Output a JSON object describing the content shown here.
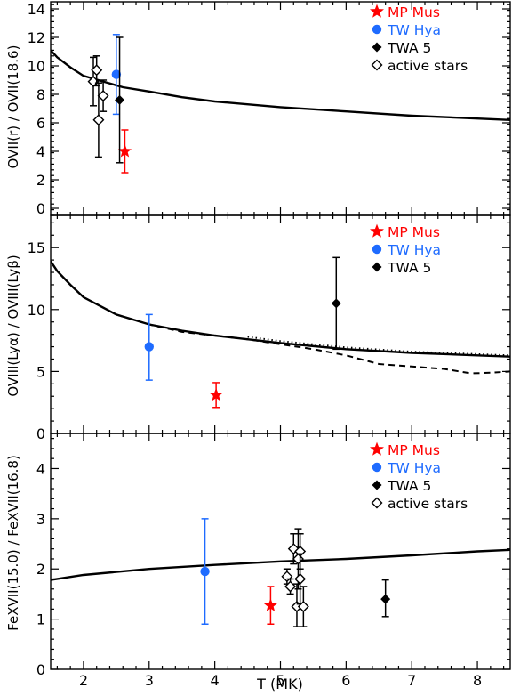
{
  "chart_data": [
    {
      "type": "scatter",
      "ylabel": "OVII(r) / OVII(18.6)",
      "xlim": [
        1.5,
        8.5
      ],
      "ylim": [
        -0.5,
        14.5
      ],
      "yticks": [
        0,
        2,
        4,
        6,
        8,
        10,
        12,
        14
      ],
      "legend_position": "top-right",
      "legend": [
        {
          "name": "MP Mus",
          "marker": "star",
          "color": "#ff0000"
        },
        {
          "name": "TW Hya",
          "marker": "circle",
          "color": "#1e6bff"
        },
        {
          "name": "TWA 5",
          "marker": "diamond-filled",
          "color": "#000000"
        },
        {
          "name": "active stars",
          "marker": "diamond-open",
          "color": "#000000"
        }
      ],
      "series": [
        {
          "name": "MP Mus",
          "marker": "star",
          "color": "#ff0000",
          "points": [
            {
              "x": 2.63,
              "y": 4.0,
              "lo": 2.5,
              "hi": 5.5
            }
          ]
        },
        {
          "name": "TW Hya",
          "marker": "circle",
          "color": "#1e6bff",
          "points": [
            {
              "x": 2.5,
              "y": 9.4,
              "lo": 6.6,
              "hi": 12.2
            }
          ]
        },
        {
          "name": "TWA 5",
          "marker": "diamond-filled",
          "color": "#000000",
          "points": [
            {
              "x": 2.55,
              "y": 7.6,
              "lo": 3.2,
              "hi": 12.0
            }
          ]
        },
        {
          "name": "active stars",
          "marker": "diamond-open",
          "color": "#000000",
          "points": [
            {
              "x": 2.15,
              "y": 8.9,
              "lo": 7.2,
              "hi": 10.6
            },
            {
              "x": 2.2,
              "y": 9.7,
              "lo": 8.6,
              "hi": 10.7
            },
            {
              "x": 2.3,
              "y": 7.9,
              "lo": 6.8,
              "hi": 9.0
            },
            {
              "x": 2.23,
              "y": 6.2,
              "lo": 3.6,
              "hi": 8.8
            }
          ]
        }
      ],
      "curves": [
        {
          "style": "solid",
          "x": [
            1.5,
            1.6,
            1.8,
            2.0,
            2.3,
            2.6,
            3.0,
            3.5,
            4.0,
            5.0,
            6.0,
            7.0,
            8.0,
            8.5
          ],
          "y": [
            11.1,
            10.6,
            9.9,
            9.3,
            8.9,
            8.5,
            8.2,
            7.8,
            7.5,
            7.1,
            6.8,
            6.5,
            6.3,
            6.2
          ]
        }
      ]
    },
    {
      "type": "scatter",
      "ylabel": "OVIII(Lyα) / OVIII(Lyβ)",
      "xlim": [
        1.5,
        8.5
      ],
      "ylim": [
        0,
        17.6
      ],
      "yticks": [
        0,
        5,
        10,
        15
      ],
      "legend_position": "top-right",
      "legend": [
        {
          "name": "MP Mus",
          "marker": "star",
          "color": "#ff0000"
        },
        {
          "name": "TW Hya",
          "marker": "circle",
          "color": "#1e6bff"
        },
        {
          "name": "TWA 5",
          "marker": "diamond-filled",
          "color": "#000000"
        }
      ],
      "series": [
        {
          "name": "MP Mus",
          "marker": "star",
          "color": "#ff0000",
          "points": [
            {
              "x": 4.02,
              "y": 3.1,
              "lo": 2.1,
              "hi": 4.1
            }
          ]
        },
        {
          "name": "TW Hya",
          "marker": "circle",
          "color": "#1e6bff",
          "points": [
            {
              "x": 3.0,
              "y": 7.0,
              "lo": 4.3,
              "hi": 9.6
            }
          ]
        },
        {
          "name": "TWA 5",
          "marker": "diamond-filled",
          "color": "#000000",
          "points": [
            {
              "x": 5.85,
              "y": 10.5,
              "lo": 6.8,
              "hi": 14.2
            }
          ]
        }
      ],
      "curves": [
        {
          "style": "solid",
          "x": [
            1.5,
            1.6,
            1.8,
            2.0,
            2.5,
            3.0,
            3.5,
            4.0,
            5.0,
            6.0,
            7.0,
            8.0,
            8.5
          ],
          "y": [
            13.9,
            13.1,
            12.0,
            11.0,
            9.6,
            8.8,
            8.3,
            7.9,
            7.3,
            6.8,
            6.5,
            6.3,
            6.2
          ]
        },
        {
          "style": "dotted",
          "x": [
            4.5,
            5.0,
            6.0,
            7.0,
            8.0,
            8.5
          ],
          "y": [
            7.8,
            7.45,
            6.95,
            6.6,
            6.4,
            6.3
          ]
        },
        {
          "style": "dashed",
          "x": [
            2.5,
            3.0,
            3.5,
            4.0,
            4.5,
            5.0,
            5.5,
            6.0,
            6.5,
            7.0,
            7.5,
            7.9,
            8.2,
            8.5
          ],
          "y": [
            9.6,
            8.8,
            8.2,
            7.9,
            7.6,
            7.2,
            6.8,
            6.3,
            5.6,
            5.4,
            5.2,
            4.85,
            4.9,
            5.0
          ]
        }
      ]
    },
    {
      "type": "scatter",
      "ylabel": "FeXVII(15.0) / FeXVII(16.8)",
      "xlabel": "T (MK)",
      "xlim": [
        1.5,
        8.5
      ],
      "xticks": [
        2,
        3,
        4,
        5,
        6,
        7,
        8
      ],
      "ylim": [
        0,
        4.7
      ],
      "yticks": [
        0,
        1,
        2,
        3,
        4
      ],
      "legend_position": "top-right",
      "legend": [
        {
          "name": "MP Mus",
          "marker": "star",
          "color": "#ff0000"
        },
        {
          "name": "TW Hya",
          "marker": "circle",
          "color": "#1e6bff"
        },
        {
          "name": "TWA 5",
          "marker": "diamond-filled",
          "color": "#000000"
        },
        {
          "name": "active stars",
          "marker": "diamond-open",
          "color": "#000000"
        }
      ],
      "series": [
        {
          "name": "MP Mus",
          "marker": "star",
          "color": "#ff0000",
          "points": [
            {
              "x": 4.85,
              "y": 1.27,
              "lo": 0.9,
              "hi": 1.65
            }
          ]
        },
        {
          "name": "TW Hya",
          "marker": "circle",
          "color": "#1e6bff",
          "points": [
            {
              "x": 3.85,
              "y": 1.95,
              "lo": 0.9,
              "hi": 3.0
            }
          ]
        },
        {
          "name": "TWA 5",
          "marker": "diamond-filled",
          "color": "#000000",
          "points": [
            {
              "x": 6.6,
              "y": 1.4,
              "lo": 1.05,
              "hi": 1.78
            }
          ]
        },
        {
          "name": "active stars",
          "marker": "diamond-open",
          "color": "#000000",
          "points": [
            {
              "x": 5.1,
              "y": 1.85,
              "lo": 1.7,
              "hi": 2.0
            },
            {
              "x": 5.15,
              "y": 1.65,
              "lo": 1.5,
              "hi": 1.8
            },
            {
              "x": 5.2,
              "y": 2.4,
              "lo": 2.1,
              "hi": 2.7
            },
            {
              "x": 5.25,
              "y": 1.25,
              "lo": 0.85,
              "hi": 1.7
            },
            {
              "x": 5.27,
              "y": 2.2,
              "lo": 1.6,
              "hi": 2.8
            },
            {
              "x": 5.3,
              "y": 2.35,
              "lo": 2.0,
              "hi": 2.7
            },
            {
              "x": 5.3,
              "y": 1.8,
              "lo": 1.3,
              "hi": 2.3
            },
            {
              "x": 5.35,
              "y": 1.25,
              "lo": 0.85,
              "hi": 1.65
            }
          ]
        }
      ],
      "curves": [
        {
          "style": "solid",
          "x": [
            1.5,
            2.0,
            3.0,
            4.0,
            5.0,
            6.0,
            7.0,
            8.0,
            8.5
          ],
          "y": [
            1.78,
            1.88,
            2.0,
            2.08,
            2.15,
            2.2,
            2.27,
            2.35,
            2.38
          ]
        }
      ]
    }
  ]
}
